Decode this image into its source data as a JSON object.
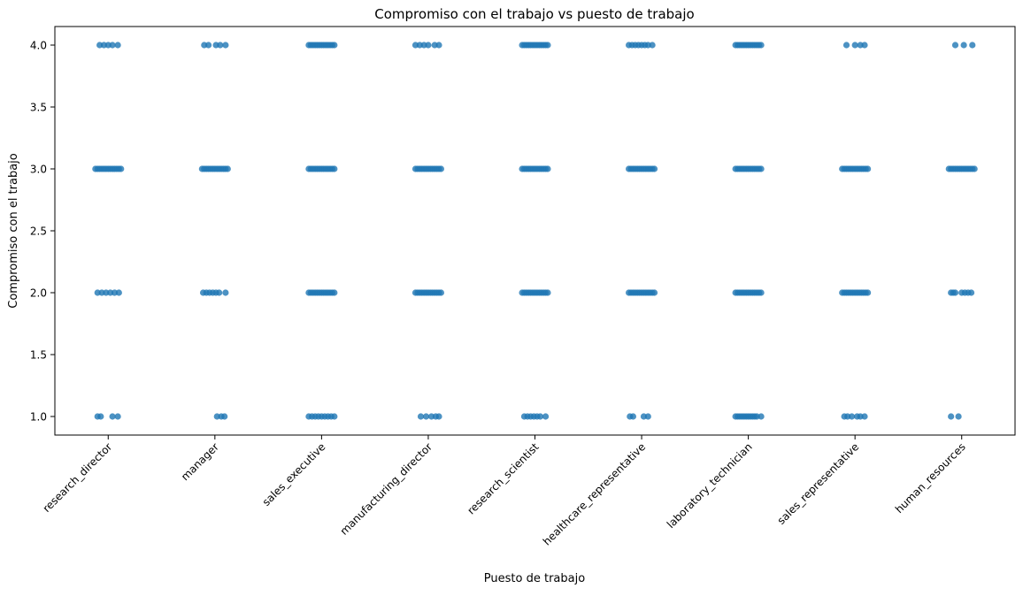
{
  "chart_data": {
    "type": "scatter",
    "style": "strip",
    "title": "Compromiso con el trabajo vs puesto de trabajo",
    "xlabel": "Puesto de trabajo",
    "ylabel": "Compromiso con el trabajo",
    "ylim": [
      0.85,
      4.15
    ],
    "yticks": [
      "1.0",
      "1.5",
      "2.0",
      "2.5",
      "3.0",
      "3.5",
      "4.0"
    ],
    "categories": [
      "research_director",
      "manager",
      "sales_executive",
      "manufacturing_director",
      "research_scientist",
      "healthcare_representative",
      "laboratory_technician",
      "sales_representative",
      "human_resources"
    ],
    "grid": false,
    "point_color": "#1f77b4",
    "points": [
      {
        "category": "research_director",
        "y": 4.0,
        "offsets": [
          -0.08,
          -0.04,
          0.0,
          0.04,
          0.09
        ]
      },
      {
        "category": "research_director",
        "y": 3.0,
        "offsets": [
          -0.12,
          -0.1,
          -0.08,
          -0.06,
          -0.04,
          -0.02,
          0.0,
          0.02,
          0.04,
          0.06,
          0.08,
          0.1,
          0.12
        ]
      },
      {
        "category": "research_director",
        "y": 2.0,
        "offsets": [
          -0.1,
          -0.06,
          -0.02,
          0.02,
          0.06,
          0.1
        ]
      },
      {
        "category": "research_director",
        "y": 1.0,
        "offsets": [
          -0.1,
          -0.07,
          0.04,
          0.09
        ]
      },
      {
        "category": "manager",
        "y": 4.0,
        "offsets": [
          -0.1,
          -0.06,
          0.01,
          0.05,
          0.1
        ]
      },
      {
        "category": "manager",
        "y": 3.0,
        "offsets": [
          -0.12,
          -0.1,
          -0.08,
          -0.06,
          -0.04,
          -0.02,
          0.0,
          0.02,
          0.04,
          0.06,
          0.08,
          0.1,
          0.12
        ]
      },
      {
        "category": "manager",
        "y": 2.0,
        "offsets": [
          -0.11,
          -0.08,
          -0.05,
          -0.02,
          0.01,
          0.04,
          0.1
        ]
      },
      {
        "category": "manager",
        "y": 1.0,
        "offsets": [
          0.02,
          0.06,
          0.09
        ]
      },
      {
        "category": "sales_executive",
        "y": 4.0,
        "offsets": [
          -0.12,
          -0.1,
          -0.08,
          -0.06,
          -0.04,
          -0.02,
          0.0,
          0.02,
          0.04,
          0.06,
          0.08,
          0.1,
          0.12
        ]
      },
      {
        "category": "sales_executive",
        "y": 3.0,
        "offsets": [
          -0.12,
          -0.1,
          -0.08,
          -0.06,
          -0.04,
          -0.02,
          0.0,
          0.02,
          0.04,
          0.06,
          0.08,
          0.1,
          0.12
        ]
      },
      {
        "category": "sales_executive",
        "y": 2.0,
        "offsets": [
          -0.12,
          -0.1,
          -0.08,
          -0.06,
          -0.04,
          -0.02,
          0.0,
          0.02,
          0.04,
          0.06,
          0.08,
          0.1,
          0.12
        ]
      },
      {
        "category": "sales_executive",
        "y": 1.0,
        "offsets": [
          -0.12,
          -0.09,
          -0.06,
          -0.03,
          0.0,
          0.03,
          0.06,
          0.09,
          0.12
        ]
      },
      {
        "category": "manufacturing_director",
        "y": 4.0,
        "offsets": [
          -0.12,
          -0.08,
          -0.04,
          0.0,
          0.06,
          0.1
        ]
      },
      {
        "category": "manufacturing_director",
        "y": 3.0,
        "offsets": [
          -0.12,
          -0.1,
          -0.08,
          -0.06,
          -0.04,
          -0.02,
          0.0,
          0.02,
          0.04,
          0.06,
          0.08,
          0.1,
          0.12
        ]
      },
      {
        "category": "manufacturing_director",
        "y": 2.0,
        "offsets": [
          -0.12,
          -0.1,
          -0.08,
          -0.06,
          -0.04,
          -0.02,
          0.0,
          0.02,
          0.04,
          0.06,
          0.08,
          0.1,
          0.12
        ]
      },
      {
        "category": "manufacturing_director",
        "y": 1.0,
        "offsets": [
          -0.07,
          -0.02,
          0.03,
          0.07,
          0.1
        ]
      },
      {
        "category": "research_scientist",
        "y": 4.0,
        "offsets": [
          -0.12,
          -0.1,
          -0.08,
          -0.06,
          -0.04,
          -0.02,
          0.0,
          0.02,
          0.04,
          0.06,
          0.08,
          0.1,
          0.12
        ]
      },
      {
        "category": "research_scientist",
        "y": 3.0,
        "offsets": [
          -0.12,
          -0.1,
          -0.08,
          -0.06,
          -0.04,
          -0.02,
          0.0,
          0.02,
          0.04,
          0.06,
          0.08,
          0.1,
          0.12
        ]
      },
      {
        "category": "research_scientist",
        "y": 2.0,
        "offsets": [
          -0.12,
          -0.1,
          -0.08,
          -0.06,
          -0.04,
          -0.02,
          0.0,
          0.02,
          0.04,
          0.06,
          0.08,
          0.1,
          0.12
        ]
      },
      {
        "category": "research_scientist",
        "y": 1.0,
        "offsets": [
          -0.1,
          -0.07,
          -0.04,
          -0.01,
          0.02,
          0.05,
          0.1
        ]
      },
      {
        "category": "healthcare_representative",
        "y": 4.0,
        "offsets": [
          -0.12,
          -0.09,
          -0.06,
          -0.03,
          0.0,
          0.03,
          0.06,
          0.1
        ]
      },
      {
        "category": "healthcare_representative",
        "y": 3.0,
        "offsets": [
          -0.12,
          -0.1,
          -0.08,
          -0.06,
          -0.04,
          -0.02,
          0.0,
          0.02,
          0.04,
          0.06,
          0.08,
          0.1,
          0.12
        ]
      },
      {
        "category": "healthcare_representative",
        "y": 2.0,
        "offsets": [
          -0.12,
          -0.1,
          -0.08,
          -0.06,
          -0.04,
          -0.02,
          0.0,
          0.02,
          0.04,
          0.06,
          0.08,
          0.1,
          0.12
        ]
      },
      {
        "category": "healthcare_representative",
        "y": 1.0,
        "offsets": [
          -0.11,
          -0.08,
          0.02,
          0.06
        ]
      },
      {
        "category": "laboratory_technician",
        "y": 4.0,
        "offsets": [
          -0.12,
          -0.1,
          -0.08,
          -0.06,
          -0.04,
          -0.02,
          0.0,
          0.02,
          0.04,
          0.06,
          0.08,
          0.1,
          0.12
        ]
      },
      {
        "category": "laboratory_technician",
        "y": 3.0,
        "offsets": [
          -0.12,
          -0.1,
          -0.08,
          -0.06,
          -0.04,
          -0.02,
          0.0,
          0.02,
          0.04,
          0.06,
          0.08,
          0.1,
          0.12
        ]
      },
      {
        "category": "laboratory_technician",
        "y": 2.0,
        "offsets": [
          -0.12,
          -0.1,
          -0.08,
          -0.06,
          -0.04,
          -0.02,
          0.0,
          0.02,
          0.04,
          0.06,
          0.08,
          0.1,
          0.12
        ]
      },
      {
        "category": "laboratory_technician",
        "y": 1.0,
        "offsets": [
          -0.12,
          -0.1,
          -0.08,
          -0.06,
          -0.04,
          -0.02,
          0.0,
          0.02,
          0.04,
          0.06,
          0.08,
          0.12
        ]
      },
      {
        "category": "sales_representative",
        "y": 4.0,
        "offsets": [
          -0.08,
          0.0,
          0.05,
          0.09
        ]
      },
      {
        "category": "sales_representative",
        "y": 3.0,
        "offsets": [
          -0.12,
          -0.1,
          -0.08,
          -0.06,
          -0.04,
          -0.02,
          0.0,
          0.02,
          0.04,
          0.06,
          0.08,
          0.1,
          0.12
        ]
      },
      {
        "category": "sales_representative",
        "y": 2.0,
        "offsets": [
          -0.12,
          -0.1,
          -0.08,
          -0.06,
          -0.04,
          -0.02,
          0.0,
          0.02,
          0.04,
          0.06,
          0.08,
          0.1,
          0.12
        ]
      },
      {
        "category": "sales_representative",
        "y": 1.0,
        "offsets": [
          -0.1,
          -0.07,
          -0.03,
          0.02,
          0.05,
          0.09
        ]
      },
      {
        "category": "human_resources",
        "y": 4.0,
        "offsets": [
          -0.06,
          0.02,
          0.1
        ]
      },
      {
        "category": "human_resources",
        "y": 3.0,
        "offsets": [
          -0.12,
          -0.1,
          -0.08,
          -0.06,
          -0.04,
          -0.02,
          0.0,
          0.02,
          0.04,
          0.06,
          0.08,
          0.1,
          0.12
        ]
      },
      {
        "category": "human_resources",
        "y": 2.0,
        "offsets": [
          -0.1,
          -0.08,
          -0.06,
          0.0,
          0.03,
          0.06,
          0.09
        ]
      },
      {
        "category": "human_resources",
        "y": 1.0,
        "offsets": [
          -0.1,
          -0.03
        ]
      }
    ]
  }
}
